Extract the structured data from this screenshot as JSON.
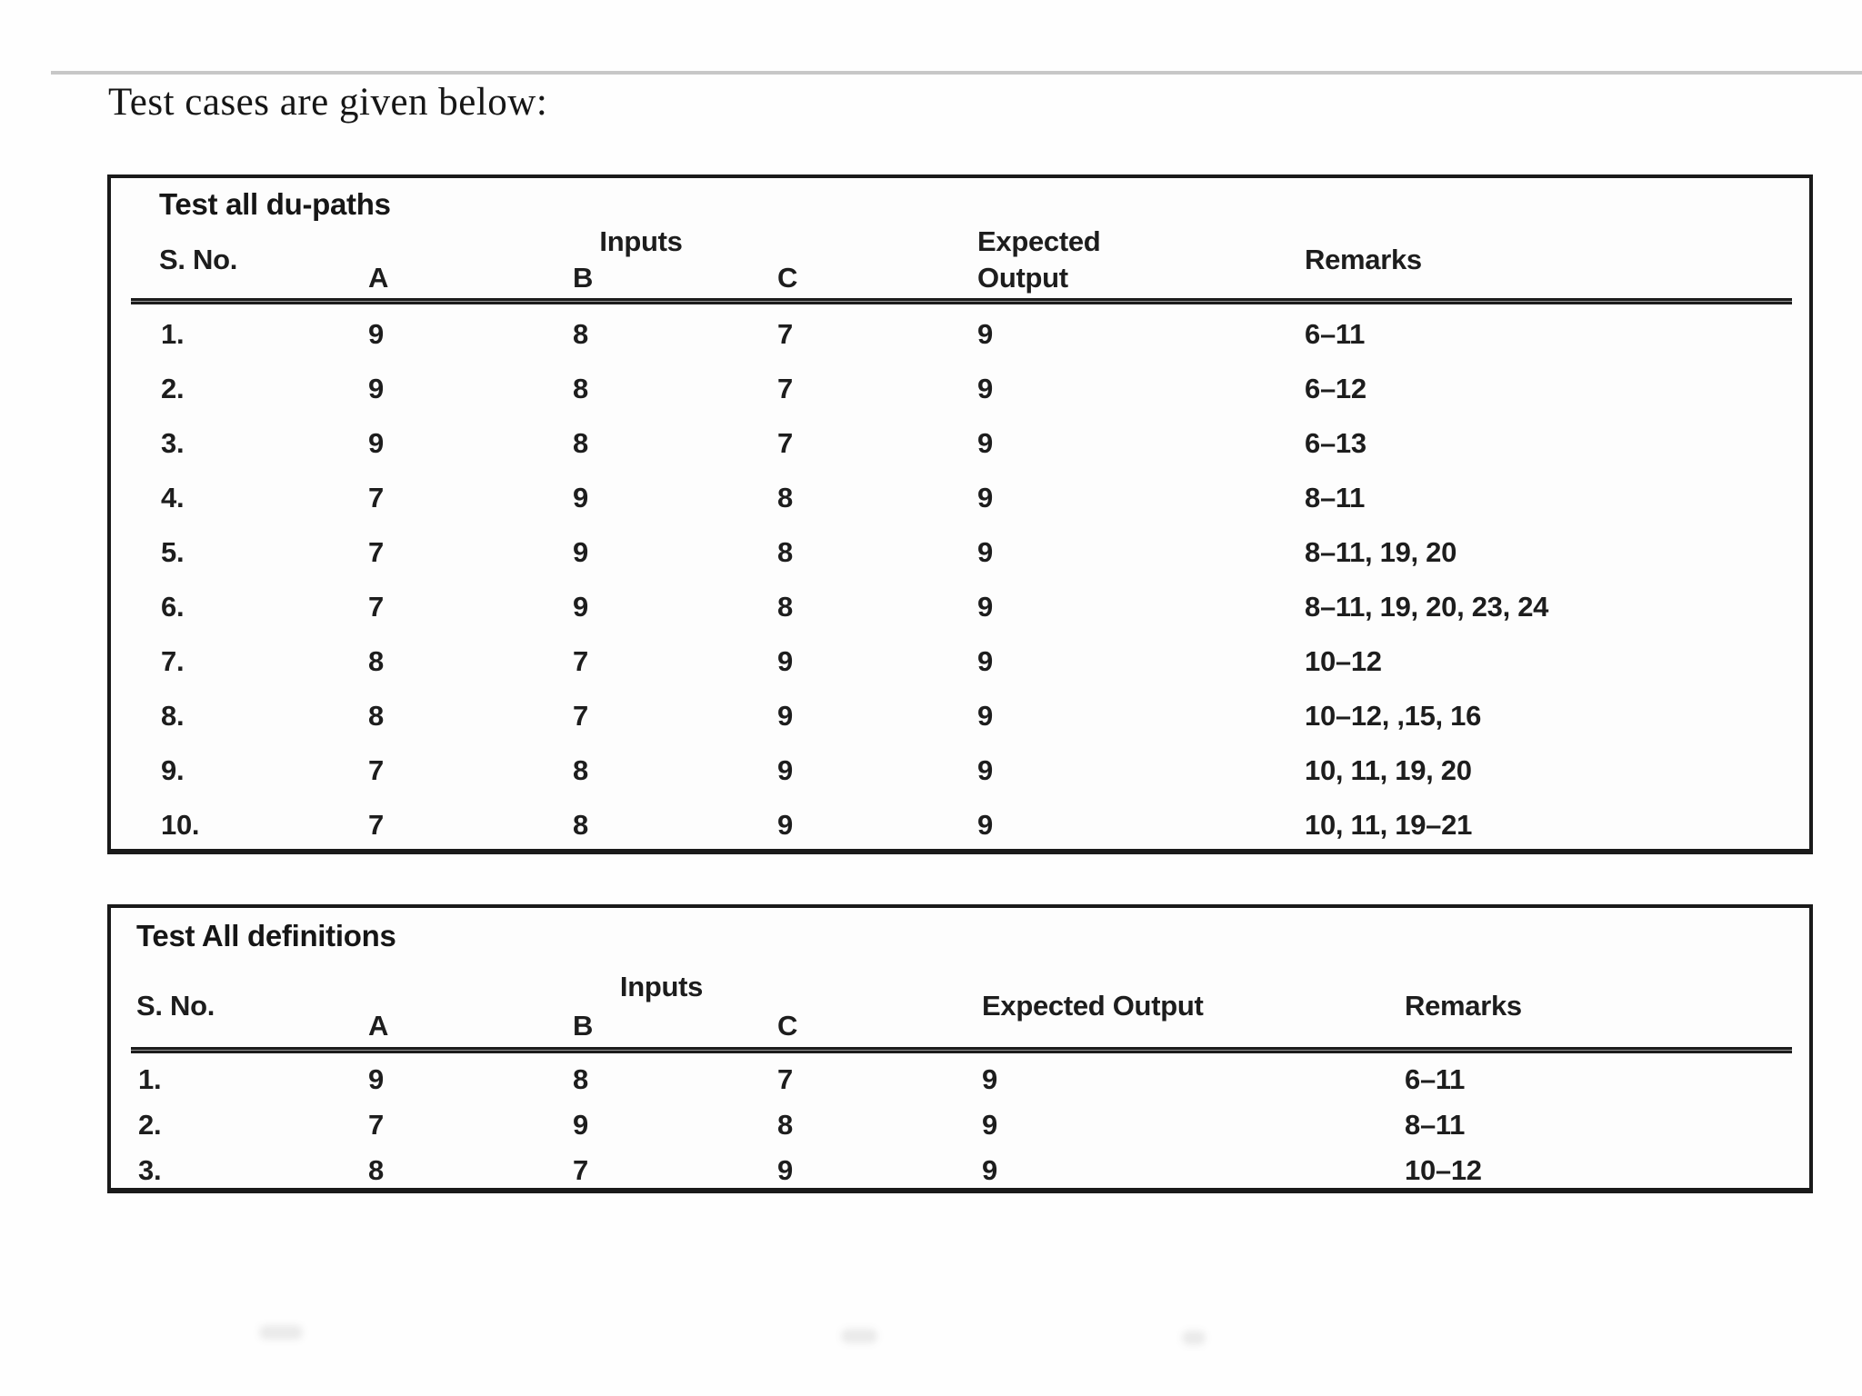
{
  "page": {
    "heading": "Test cases are given below:"
  },
  "tables": [
    {
      "title": "Test all du-paths",
      "columns": {
        "sno": "S. No.",
        "inputs": "Inputs",
        "a": "A",
        "b": "B",
        "c": "C",
        "expected": "Expected Output",
        "remarks": "Remarks"
      },
      "rows": [
        {
          "sno": "1.",
          "a": "9",
          "b": "8",
          "c": "7",
          "out": "9",
          "remarks": "6–11"
        },
        {
          "sno": "2.",
          "a": "9",
          "b": "8",
          "c": "7",
          "out": "9",
          "remarks": "6–12"
        },
        {
          "sno": "3.",
          "a": "9",
          "b": "8",
          "c": "7",
          "out": "9",
          "remarks": "6–13"
        },
        {
          "sno": "4.",
          "a": "7",
          "b": "9",
          "c": "8",
          "out": "9",
          "remarks": "8–11"
        },
        {
          "sno": "5.",
          "a": "7",
          "b": "9",
          "c": "8",
          "out": "9",
          "remarks": "8–11, 19, 20"
        },
        {
          "sno": "6.",
          "a": "7",
          "b": "9",
          "c": "8",
          "out": "9",
          "remarks": "8–11, 19, 20, 23, 24"
        },
        {
          "sno": "7.",
          "a": "8",
          "b": "7",
          "c": "9",
          "out": "9",
          "remarks": "10–12"
        },
        {
          "sno": "8.",
          "a": "8",
          "b": "7",
          "c": "9",
          "out": "9",
          "remarks": "10–12, ,15, 16"
        },
        {
          "sno": "9.",
          "a": "7",
          "b": "8",
          "c": "9",
          "out": "9",
          "remarks": "10, 11, 19, 20"
        },
        {
          "sno": "10.",
          "a": "7",
          "b": "8",
          "c": "9",
          "out": "9",
          "remarks": "10, 11, 19–21"
        }
      ]
    },
    {
      "title": "Test All definitions",
      "columns": {
        "sno": "S. No.",
        "inputs": "Inputs",
        "a": "A",
        "b": "B",
        "c": "C",
        "expected": "Expected Output",
        "remarks": "Remarks"
      },
      "rows": [
        {
          "sno": "1.",
          "a": "9",
          "b": "8",
          "c": "7",
          "out": "9",
          "remarks": "6–11"
        },
        {
          "sno": "2.",
          "a": "7",
          "b": "9",
          "c": "8",
          "out": "9",
          "remarks": "8–11"
        },
        {
          "sno": "3.",
          "a": "8",
          "b": "7",
          "c": "9",
          "out": "9",
          "remarks": "10–12"
        }
      ]
    }
  ]
}
